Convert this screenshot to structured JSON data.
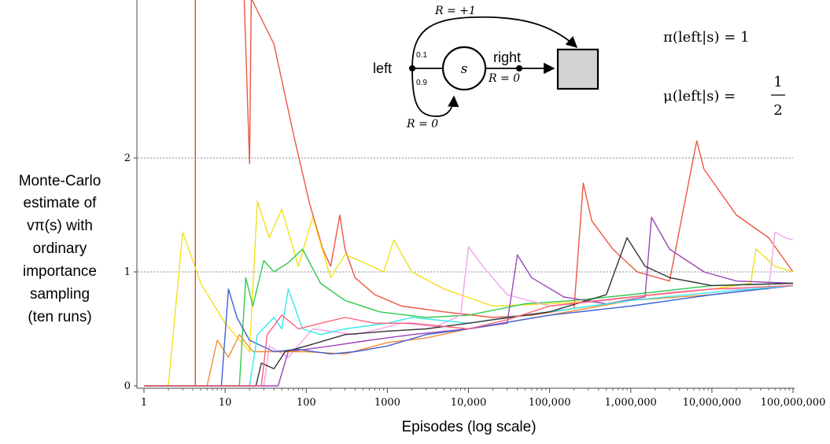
{
  "chart_data": {
    "type": "line",
    "title": "",
    "xlabel": "Episodes (log scale)",
    "ylabel_lines": [
      "Monte-Carlo",
      "estimate of",
      "vπ(s) with",
      "ordinary",
      "importance",
      "sampling",
      "(ten runs)"
    ],
    "x_scale": "log",
    "xlim": [
      1,
      100000000
    ],
    "ylim": [
      0,
      3.4
    ],
    "x_ticks": [
      1,
      10,
      100,
      1000,
      10000,
      100000,
      1000000,
      10000000,
      100000000
    ],
    "x_tick_labels": [
      "1",
      "10",
      "100",
      "1000",
      "10,000",
      "100,000",
      "1,000,000",
      "10,000,000",
      "100,000,000"
    ],
    "y_ticks": [
      0,
      1,
      2
    ],
    "y_tick_labels": [
      "0",
      "1",
      "2"
    ],
    "reference_lines": [
      1,
      2
    ],
    "grid": "dotted horizontal at y=1 and y=2",
    "legend": "none",
    "series": [
      {
        "color": "#e8473a",
        "points": [
          [
            1,
            0
          ],
          [
            4.3,
            0
          ],
          [
            4.3,
            3.6
          ]
        ]
      },
      {
        "color": "#ee5540",
        "points": [
          [
            17,
            3.5
          ],
          [
            20,
            1.95
          ],
          [
            21,
            3.4
          ],
          [
            40,
            3.0
          ],
          [
            70,
            2.2
          ],
          [
            110,
            1.6
          ],
          [
            160,
            1.2
          ],
          [
            200,
            1.05
          ],
          [
            260,
            1.5
          ],
          [
            300,
            1.2
          ],
          [
            400,
            0.95
          ],
          [
            700,
            0.8
          ],
          [
            1500,
            0.7
          ],
          [
            5000,
            0.65
          ],
          [
            20000,
            0.6
          ],
          [
            60000,
            0.62
          ],
          [
            200000,
            0.68
          ],
          [
            260000,
            1.78
          ],
          [
            330000,
            1.45
          ],
          [
            600000,
            1.2
          ],
          [
            1200000,
            1.0
          ],
          [
            3000000,
            0.92
          ],
          [
            6500000,
            2.15
          ],
          [
            8000000,
            1.9
          ],
          [
            20000000,
            1.5
          ],
          [
            50000000,
            1.3
          ],
          [
            100000000,
            1.0
          ]
        ]
      },
      {
        "color": "#f1e01c",
        "points": [
          [
            1,
            0
          ],
          [
            2,
            0
          ],
          [
            3,
            1.35
          ],
          [
            5,
            0.9
          ],
          [
            10,
            0.55
          ],
          [
            20,
            0.3
          ],
          [
            25,
            1.62
          ],
          [
            35,
            1.3
          ],
          [
            50,
            1.55
          ],
          [
            80,
            1.05
          ],
          [
            120,
            1.48
          ],
          [
            200,
            0.95
          ],
          [
            300,
            1.15
          ],
          [
            450,
            1.1
          ],
          [
            900,
            1.0
          ],
          [
            1200,
            1.28
          ],
          [
            2000,
            1.0
          ],
          [
            5000,
            0.85
          ],
          [
            20000,
            0.7
          ],
          [
            100000,
            0.72
          ],
          [
            500000,
            0.75
          ],
          [
            2000000,
            0.8
          ],
          [
            10000000,
            0.85
          ],
          [
            30000000,
            0.9
          ],
          [
            35000000,
            1.2
          ],
          [
            60000000,
            1.05
          ],
          [
            100000000,
            1.0
          ]
        ]
      },
      {
        "color": "#2fc94a",
        "points": [
          [
            1,
            0
          ],
          [
            15,
            0
          ],
          [
            18,
            0.95
          ],
          [
            22,
            0.7
          ],
          [
            30,
            1.1
          ],
          [
            40,
            1.0
          ],
          [
            60,
            1.08
          ],
          [
            90,
            1.2
          ],
          [
            150,
            0.9
          ],
          [
            300,
            0.75
          ],
          [
            800,
            0.65
          ],
          [
            3000,
            0.6
          ],
          [
            10000,
            0.62
          ],
          [
            50000,
            0.72
          ],
          [
            200000,
            0.75
          ],
          [
            1000000,
            0.8
          ],
          [
            10000000,
            0.88
          ],
          [
            100000000,
            0.9
          ]
        ]
      },
      {
        "color": "#f2a3ea",
        "points": [
          [
            1,
            0
          ],
          [
            30,
            0
          ],
          [
            35,
            0.35
          ],
          [
            60,
            0.25
          ],
          [
            120,
            0.5
          ],
          [
            400,
            0.45
          ],
          [
            800,
            0.5
          ],
          [
            1500,
            0.55
          ],
          [
            4000,
            0.52
          ],
          [
            8000,
            0.62
          ],
          [
            10000,
            1.22
          ],
          [
            15000,
            1.05
          ],
          [
            30000,
            0.8
          ],
          [
            100000,
            0.7
          ],
          [
            500000,
            0.75
          ],
          [
            3000000,
            0.82
          ],
          [
            10000000,
            0.85
          ],
          [
            50000000,
            0.85
          ],
          [
            60000000,
            1.35
          ],
          [
            80000000,
            1.3
          ],
          [
            100000000,
            1.28
          ]
        ]
      },
      {
        "color": "#9b46b9",
        "points": [
          [
            1,
            0
          ],
          [
            45,
            0
          ],
          [
            60,
            0.3
          ],
          [
            200,
            0.35
          ],
          [
            600,
            0.4
          ],
          [
            2000,
            0.45
          ],
          [
            10000,
            0.5
          ],
          [
            30000,
            0.55
          ],
          [
            40000,
            1.15
          ],
          [
            60000,
            0.95
          ],
          [
            150000,
            0.78
          ],
          [
            500000,
            0.72
          ],
          [
            1500000,
            0.78
          ],
          [
            1800000,
            1.48
          ],
          [
            3000000,
            1.2
          ],
          [
            8000000,
            1.0
          ],
          [
            20000000,
            0.92
          ],
          [
            100000000,
            0.9
          ]
        ]
      },
      {
        "color": "#f58c2e",
        "points": [
          [
            1,
            0
          ],
          [
            6,
            0
          ],
          [
            8,
            0.4
          ],
          [
            11,
            0.25
          ],
          [
            15,
            0.45
          ],
          [
            22,
            0.3
          ],
          [
            40,
            0.3
          ],
          [
            100,
            0.3
          ],
          [
            300,
            0.28
          ],
          [
            1000,
            0.38
          ],
          [
            3000,
            0.42
          ],
          [
            10000,
            0.5
          ],
          [
            100000,
            0.62
          ],
          [
            1000000,
            0.75
          ],
          [
            10000000,
            0.8
          ],
          [
            100000000,
            0.88
          ]
        ]
      },
      {
        "color": "#3f62d8",
        "points": [
          [
            1,
            0
          ],
          [
            9,
            0
          ],
          [
            11,
            0.85
          ],
          [
            14,
            0.6
          ],
          [
            20,
            0.4
          ],
          [
            40,
            0.3
          ],
          [
            80,
            0.32
          ],
          [
            200,
            0.28
          ],
          [
            400,
            0.3
          ],
          [
            1000,
            0.35
          ],
          [
            3000,
            0.45
          ],
          [
            10000,
            0.5
          ],
          [
            100000,
            0.62
          ],
          [
            1000000,
            0.7
          ],
          [
            10000000,
            0.8
          ],
          [
            100000000,
            0.88
          ]
        ]
      },
      {
        "color": "#33e8ec",
        "points": [
          [
            1,
            0
          ],
          [
            20,
            0
          ],
          [
            25,
            0.45
          ],
          [
            40,
            0.6
          ],
          [
            50,
            0.5
          ],
          [
            60,
            0.85
          ],
          [
            90,
            0.5
          ],
          [
            150,
            0.45
          ],
          [
            300,
            0.5
          ],
          [
            1000,
            0.55
          ],
          [
            2000,
            0.6
          ],
          [
            10000,
            0.55
          ],
          [
            30000,
            0.6
          ],
          [
            100000,
            0.65
          ],
          [
            1000000,
            0.75
          ],
          [
            10000000,
            0.82
          ],
          [
            100000000,
            0.88
          ]
        ]
      },
      {
        "color": "#333333",
        "points": [
          [
            1,
            0
          ],
          [
            24,
            0
          ],
          [
            28,
            0.2
          ],
          [
            40,
            0.15
          ],
          [
            55,
            0.3
          ],
          [
            100,
            0.35
          ],
          [
            300,
            0.45
          ],
          [
            1000,
            0.48
          ],
          [
            3000,
            0.5
          ],
          [
            10000,
            0.55
          ],
          [
            100000,
            0.65
          ],
          [
            500000,
            0.8
          ],
          [
            900000,
            1.3
          ],
          [
            1500000,
            1.05
          ],
          [
            3000000,
            0.95
          ],
          [
            10000000,
            0.88
          ],
          [
            100000000,
            0.9
          ]
        ]
      },
      {
        "color": "#ff5f7a",
        "points": [
          [
            1,
            0
          ],
          [
            28,
            0
          ],
          [
            33,
            0.45
          ],
          [
            50,
            0.62
          ],
          [
            80,
            0.5
          ],
          [
            150,
            0.55
          ],
          [
            300,
            0.6
          ],
          [
            700,
            0.55
          ],
          [
            2000,
            0.55
          ],
          [
            10000,
            0.5
          ],
          [
            30000,
            0.58
          ],
          [
            100000,
            0.7
          ],
          [
            1000000,
            0.78
          ],
          [
            10000000,
            0.85
          ],
          [
            100000000,
            0.88
          ]
        ]
      }
    ]
  },
  "inset": {
    "top_reward": "R = +1",
    "bottom_reward": "R = 0",
    "right_reward": "R = 0",
    "left_label": "left",
    "right_label": "right",
    "prob_top": "0.1",
    "prob_bottom": "0.9",
    "state_label": "s",
    "pi_text": "π(left|s) = 1",
    "mu_text_left": "μ(left|s) =",
    "mu_num": "1",
    "mu_den": "2"
  }
}
